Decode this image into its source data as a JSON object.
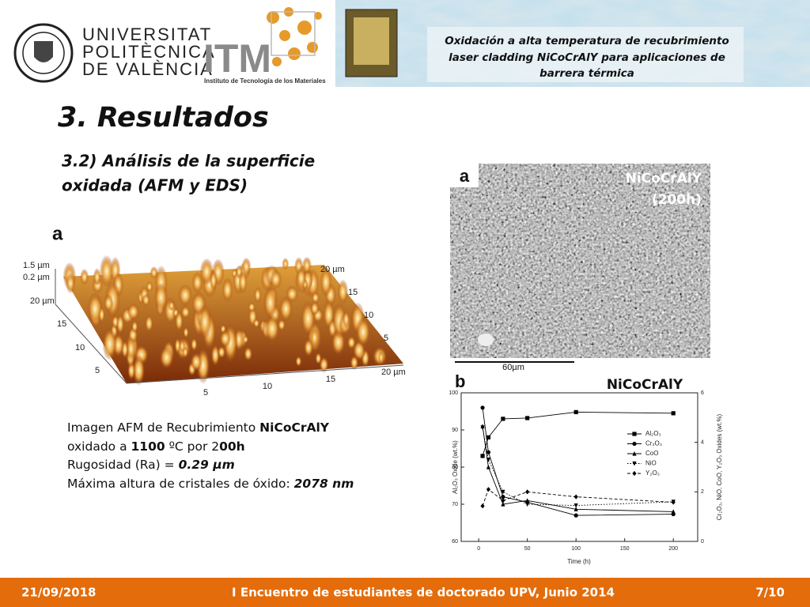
{
  "header": {
    "upv_lines": [
      "UNIVERSITAT",
      "POLITÈCNICA",
      "DE VALÈNCIA"
    ],
    "itm_logo": "ITM",
    "itm_name": "Instituto de Tecnología de los Materiales",
    "title_lines": [
      "Oxidación a alta temperatura de recubrimiento",
      "laser cladding NiCoCrAlY para aplicaciones de",
      "barrera térmica"
    ]
  },
  "slide": {
    "title": "3. Resultados",
    "subtitle_lines": [
      "3.2) Análisis de la superficie",
      "oxidada (AFM y EDS)"
    ]
  },
  "afm": {
    "panel_label": "a",
    "z_labels": [
      "1.5 µm",
      "0.2 µm"
    ],
    "left_axis": [
      "20 µm",
      "15",
      "10",
      "5"
    ],
    "bottom_axis": [
      "5",
      "10",
      "15",
      "20 µm"
    ],
    "right_axis": [
      "20 µm",
      "15",
      "10",
      "5"
    ],
    "caption": [
      [
        "Imagen AFM de Recubrimiento ",
        "NiCoCrAlY"
      ],
      [
        "oxidado a ",
        "1100",
        " ºC por 2",
        "00h"
      ],
      [
        "Rugosidad (Ra) = ",
        "0.29 µm"
      ],
      [
        "Máxima altura de cristales de óxido:  ",
        "2078 nm"
      ]
    ]
  },
  "sem": {
    "panel_label": "a",
    "sample_lines": [
      "NiCoCrAlY",
      "(200h)"
    ],
    "scale_bar": "60µm"
  },
  "chart_data": {
    "type": "line",
    "panel_label": "b",
    "title": "NiCoCrAlY",
    "x_label": "Time (h)",
    "y_label": "Al₂O₃ Oxide (wt.%)",
    "y2_label": "Cr₂O₃, NiO, CoO, Y₂O₃ Oxides (wt.%)",
    "x": [
      4,
      10,
      25,
      50,
      100,
      200
    ],
    "xlim": [
      -18,
      225
    ],
    "xticks": [
      0,
      50,
      100,
      150,
      200
    ],
    "ylim": [
      60,
      100
    ],
    "yticks": [
      60,
      70,
      80,
      90,
      100
    ],
    "y2lim": [
      0,
      6
    ],
    "y2ticks": [
      0,
      2,
      4,
      6
    ],
    "series": [
      {
        "name": "Al₂O₃",
        "color": "#000000",
        "marker": "square",
        "linestyle": "solid",
        "values": [
          83,
          88,
          93,
          93.2,
          94.8,
          94.5
        ]
      },
      {
        "name": "Cr₂O₃",
        "color": "#000000",
        "marker": "circle",
        "linestyle": "solid",
        "axis": "y2",
        "values": [
          5.4,
          3.6,
          1.8,
          1.58,
          1.05,
          1.1
        ]
      },
      {
        "name": "CoO",
        "color": "#000000",
        "marker": "triangle-up",
        "linestyle": "solid",
        "axis": "y2",
        "values": [
          4.65,
          3.0,
          1.5,
          1.65,
          1.3,
          1.2
        ]
      },
      {
        "name": "NiO",
        "color": "#000000",
        "marker": "triangle-down",
        "linestyle": "dotted",
        "axis": "y2",
        "values": [
          4.6,
          3.3,
          2.0,
          1.5,
          1.45,
          1.6
        ]
      },
      {
        "name": "Y₂O₃",
        "color": "#000000",
        "marker": "diamond",
        "linestyle": "dashed",
        "axis": "y2",
        "values": [
          1.43,
          2.1,
          1.65,
          2.0,
          1.8,
          1.58
        ]
      }
    ]
  },
  "footer": {
    "date": "21/09/2018",
    "event": "I Encuentro de estudiantes de doctorado UPV, Junio 2014",
    "page": "7/10"
  }
}
